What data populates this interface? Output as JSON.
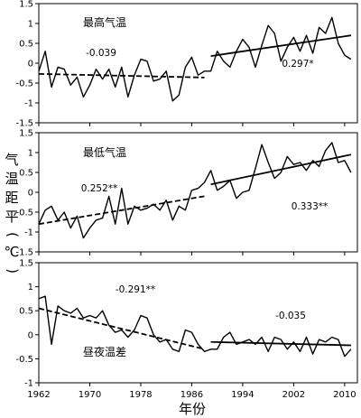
{
  "chart_data": [
    {
      "type": "line",
      "title": "最高气温",
      "x": [
        1962,
        1963,
        1964,
        1965,
        1966,
        1967,
        1968,
        1969,
        1970,
        1971,
        1972,
        1973,
        1974,
        1975,
        1976,
        1977,
        1978,
        1979,
        1980,
        1981,
        1982,
        1983,
        1984,
        1985,
        1986,
        1987,
        1988,
        1989,
        1990,
        1991,
        1992,
        1993,
        1994,
        1995,
        1996,
        1997,
        1998,
        1999,
        2000,
        2001,
        2002,
        2003,
        2004,
        2005,
        2006,
        2007,
        2008,
        2009,
        2010,
        2011
      ],
      "values": [
        -0.2,
        0.3,
        -0.6,
        -0.1,
        -0.15,
        -0.55,
        -0.35,
        -0.85,
        -0.55,
        -0.15,
        -0.4,
        -0.15,
        -0.6,
        -0.1,
        -0.85,
        -0.3,
        0.1,
        0.05,
        -0.45,
        -0.4,
        -0.2,
        -0.95,
        -0.8,
        -0.1,
        0.15,
        -0.3,
        -0.2,
        -0.2,
        0.3,
        0.05,
        -0.1,
        0.3,
        0.6,
        0.4,
        -0.1,
        0.45,
        0.95,
        0.75,
        0.05,
        0.4,
        0.65,
        0.3,
        0.7,
        0.25,
        0.9,
        0.75,
        1.15,
        0.5,
        0.2,
        0.1
      ],
      "trend_segments": [
        {
          "label": "-0.039",
          "style": "dashed",
          "x": [
            1962,
            1988
          ],
          "y": [
            -0.27,
            -0.36
          ]
        },
        {
          "label": "0.297*",
          "style": "solid",
          "x": [
            1989,
            2011
          ],
          "y": [
            0.18,
            0.7
          ]
        }
      ],
      "ylim": [
        -1.5,
        1.5
      ],
      "yticks": [
        "1.5",
        "1",
        "0.5",
        "0",
        "-0.5",
        "-1",
        "-1.5"
      ]
    },
    {
      "type": "line",
      "title": "最低气温",
      "x": [
        1962,
        1963,
        1964,
        1965,
        1966,
        1967,
        1968,
        1969,
        1970,
        1971,
        1972,
        1973,
        1974,
        1975,
        1976,
        1977,
        1978,
        1979,
        1980,
        1981,
        1982,
        1983,
        1984,
        1985,
        1986,
        1987,
        1988,
        1989,
        1990,
        1991,
        1992,
        1993,
        1994,
        1995,
        1996,
        1997,
        1998,
        1999,
        2000,
        2001,
        2002,
        2003,
        2004,
        2005,
        2006,
        2007,
        2008,
        2009,
        2010,
        2011
      ],
      "values": [
        -0.8,
        -0.45,
        -0.35,
        -0.7,
        -0.5,
        -0.9,
        -0.6,
        -1.15,
        -0.9,
        -0.7,
        -0.65,
        -0.1,
        -0.8,
        0.1,
        -0.8,
        -0.35,
        -0.45,
        -0.4,
        -0.3,
        -0.45,
        -0.2,
        -0.7,
        -0.35,
        -0.45,
        0.05,
        0.1,
        0.25,
        0.55,
        0.05,
        0.15,
        0.3,
        -0.15,
        0.0,
        0.05,
        0.6,
        1.2,
        0.75,
        0.35,
        0.5,
        0.9,
        0.7,
        0.75,
        0.55,
        0.8,
        0.65,
        1.05,
        1.25,
        0.75,
        0.8,
        0.5
      ],
      "trend_segments": [
        {
          "label": "0.252**",
          "style": "dashed",
          "x": [
            1962,
            1988
          ],
          "y": [
            -0.8,
            -0.1
          ]
        },
        {
          "label": "0.333**",
          "style": "solid",
          "x": [
            1989,
            2011
          ],
          "y": [
            0.2,
            0.95
          ]
        }
      ],
      "ylim": [
        -1.5,
        1.5
      ],
      "yticks": [
        "1.5",
        "1",
        "0.5",
        "0",
        "-0.5",
        "-1",
        "-1.5"
      ]
    },
    {
      "type": "line",
      "title": "昼夜温差",
      "x": [
        1962,
        1963,
        1964,
        1965,
        1966,
        1967,
        1968,
        1969,
        1970,
        1971,
        1972,
        1973,
        1974,
        1975,
        1976,
        1977,
        1978,
        1979,
        1980,
        1981,
        1982,
        1983,
        1984,
        1985,
        1986,
        1987,
        1988,
        1989,
        1990,
        1991,
        1992,
        1993,
        1994,
        1995,
        1996,
        1997,
        1998,
        1999,
        2000,
        2001,
        2002,
        2003,
        2004,
        2005,
        2006,
        2007,
        2008,
        2009,
        2010,
        2011
      ],
      "values": [
        0.75,
        0.8,
        -0.2,
        0.6,
        0.5,
        0.45,
        0.55,
        0.35,
        0.4,
        0.35,
        0.5,
        0.2,
        0.05,
        0.1,
        -0.05,
        0.1,
        0.4,
        0.35,
        0.0,
        -0.15,
        -0.1,
        -0.3,
        -0.35,
        0.1,
        0.05,
        -0.2,
        -0.35,
        -0.3,
        -0.3,
        -0.05,
        0.05,
        -0.2,
        -0.15,
        -0.1,
        -0.2,
        -0.05,
        -0.35,
        -0.05,
        -0.1,
        -0.3,
        -0.15,
        -0.35,
        -0.05,
        -0.4,
        -0.1,
        -0.15,
        -0.05,
        -0.1,
        -0.45,
        -0.3
      ],
      "trend_segments": [
        {
          "label": "-0.291**",
          "style": "dashed",
          "x": [
            1962,
            1988
          ],
          "y": [
            0.55,
            -0.3
          ]
        },
        {
          "label": "-0.035",
          "style": "solid",
          "x": [
            1989,
            2011
          ],
          "y": [
            -0.15,
            -0.22
          ]
        }
      ],
      "ylim": [
        -1,
        1.5
      ],
      "yticks": [
        "1.5",
        "1",
        "0.5",
        "0",
        "-0.5",
        "-1"
      ]
    }
  ],
  "xticks": [
    "1962",
    "1970",
    "1978",
    "1986",
    "1994",
    "2002",
    "2010"
  ],
  "xlabel": "年份",
  "ylabel": [
    "气",
    "温",
    "距",
    "平",
    "(",
    "℃",
    ")"
  ]
}
